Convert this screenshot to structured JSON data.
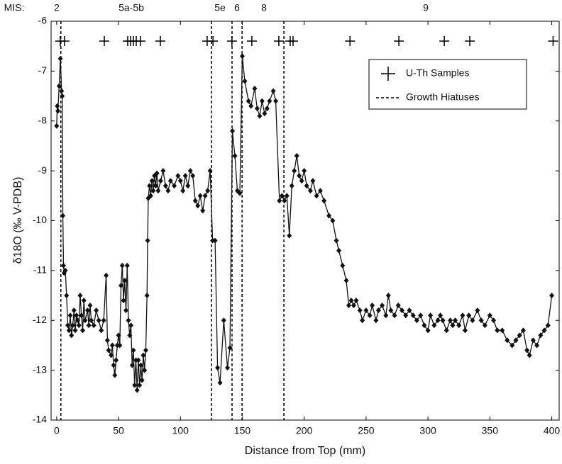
{
  "chart_data": {
    "type": "line",
    "x_label": "Distance from Top (mm)",
    "y_label": "δ18O (‰ V-PDB)",
    "color": "#111111",
    "x": [
      0,
      0.5,
      1,
      2,
      3,
      4,
      4.5,
      5,
      5.5,
      6,
      7,
      8,
      9,
      10,
      11,
      12,
      13,
      14,
      15,
      16,
      17,
      18,
      19,
      20,
      21,
      22,
      23,
      25,
      26,
      27,
      28,
      30,
      32,
      34,
      36,
      38,
      40,
      41,
      42,
      44,
      45,
      46,
      47,
      48,
      49,
      50,
      51,
      52,
      53,
      54,
      55,
      56,
      57,
      58,
      59,
      60,
      61,
      62,
      63,
      64,
      65,
      66,
      67,
      68,
      69,
      70,
      71,
      72,
      73,
      73.5,
      74,
      75,
      76,
      77,
      78,
      79,
      80,
      81,
      82,
      84,
      86,
      88,
      90,
      92,
      95,
      98,
      100,
      102,
      104,
      106,
      108,
      110,
      112,
      114,
      116,
      118,
      120,
      122,
      124,
      126,
      128,
      130,
      132,
      135,
      138,
      140,
      142,
      144,
      146,
      148,
      150,
      152,
      155,
      157,
      160,
      162,
      164,
      166,
      168,
      170,
      172,
      175,
      177,
      180,
      182,
      184,
      186,
      188,
      190,
      192,
      194,
      196,
      198,
      200,
      202,
      205,
      207,
      210,
      213,
      216,
      220,
      223,
      226,
      228,
      231,
      234,
      236,
      238,
      240,
      242,
      245,
      247,
      250,
      253,
      255,
      258,
      260,
      263,
      266,
      268,
      270,
      273,
      276,
      279,
      282,
      285,
      288,
      291,
      294,
      297,
      300,
      302,
      305,
      308,
      310,
      312,
      315,
      318,
      320,
      322,
      325,
      328,
      330,
      333,
      336,
      340,
      343,
      346,
      350,
      353,
      356,
      360,
      364,
      368,
      371,
      374,
      377,
      380,
      382,
      385,
      388,
      391,
      394,
      397,
      400
    ],
    "values": [
      -8.1,
      -7.7,
      -7.8,
      -7.3,
      -6.75,
      -7.4,
      -7.5,
      -9.9,
      -10.9,
      -11.05,
      -11.0,
      -11.5,
      -12.1,
      -12.2,
      -11.9,
      -12.3,
      -12.1,
      -11.8,
      -12.2,
      -11.9,
      -12.0,
      -12.1,
      -11.5,
      -11.9,
      -12.2,
      -11.6,
      -12.0,
      -11.8,
      -12.1,
      -11.7,
      -12.0,
      -12.1,
      -11.8,
      -12.0,
      -12.2,
      -12.0,
      -11.1,
      -12.4,
      -12.6,
      -12.7,
      -12.5,
      -12.9,
      -13.1,
      -12.8,
      -12.5,
      -12.3,
      -12.5,
      -11.3,
      -10.9,
      -11.6,
      -11.2,
      -11.8,
      -10.9,
      -12.0,
      -12.3,
      -12.1,
      -12.9,
      -12.6,
      -13.3,
      -12.8,
      -13.4,
      -12.8,
      -13.3,
      -12.9,
      -13.2,
      -12.7,
      -13.0,
      -12.6,
      -11.5,
      -10.4,
      -9.55,
      -9.3,
      -9.5,
      -9.2,
      -9.4,
      -9.1,
      -9.3,
      -9.05,
      -9.4,
      -9.2,
      -9.0,
      -9.3,
      -9.4,
      -9.2,
      -9.3,
      -9.1,
      -9.2,
      -9.4,
      -9.1,
      -9.3,
      -9.0,
      -9.1,
      -9.6,
      -9.7,
      -9.5,
      -9.8,
      -9.5,
      -9.4,
      -9.0,
      -10.4,
      -10.4,
      -12.95,
      -13.25,
      -12.0,
      -12.95,
      -12.55,
      -8.2,
      -8.7,
      -9.4,
      -9.45,
      -6.7,
      -7.2,
      -7.6,
      -7.7,
      -7.35,
      -7.75,
      -7.9,
      -7.6,
      -7.85,
      -7.75,
      -7.6,
      -7.4,
      -7.6,
      -9.6,
      -9.5,
      -9.6,
      -9.5,
      -10.3,
      -9.3,
      -9.0,
      -8.7,
      -9.1,
      -9.2,
      -9.0,
      -9.3,
      -9.4,
      -9.2,
      -9.5,
      -9.4,
      -9.6,
      -9.9,
      -10.0,
      -10.4,
      -10.6,
      -10.9,
      -11.2,
      -11.7,
      -11.6,
      -11.7,
      -11.6,
      -11.8,
      -12.0,
      -11.8,
      -11.9,
      -11.7,
      -12.0,
      -11.8,
      -11.7,
      -11.9,
      -11.5,
      -11.8,
      -11.9,
      -11.7,
      -11.8,
      -11.9,
      -11.8,
      -11.9,
      -12.0,
      -11.9,
      -12.1,
      -12.2,
      -11.9,
      -12.1,
      -12.0,
      -11.9,
      -12.0,
      -12.2,
      -12.0,
      -12.1,
      -12.0,
      -12.1,
      -11.9,
      -12.2,
      -11.9,
      -12.0,
      -11.8,
      -12.0,
      -12.1,
      -11.9,
      -12.0,
      -12.2,
      -12.2,
      -12.4,
      -12.5,
      -12.4,
      -12.3,
      -12.2,
      -12.6,
      -12.7,
      -12.4,
      -12.5,
      -12.3,
      -12.2,
      -12.1,
      -11.5
    ],
    "samples": {
      "name": "U-Th Samples",
      "x": [
        2.9,
        6.3,
        38.5,
        57.4,
        59.7,
        62,
        64.3,
        67.7,
        83.8,
        121.6,
        126.3,
        141.6,
        157.7,
        179.5,
        188.7,
        191,
        237,
        276.5,
        313.2,
        333.8,
        401.1
      ]
    },
    "hiatuses": {
      "name": "Growth Hiatuses",
      "x": [
        3.4,
        125.1,
        141.7,
        149.8,
        183.6
      ]
    },
    "mis": {
      "title": "MIS:",
      "labels": [
        "2",
        "5a-5b",
        "5e",
        "6",
        "8",
        "9"
      ]
    },
    "xlim": [
      -4.5,
      406
    ],
    "ylim": [
      -14,
      -6
    ],
    "xticks": [
      0,
      50,
      100,
      150,
      200,
      250,
      300,
      350,
      400
    ],
    "yticks": [
      -6,
      -7,
      -8,
      -9,
      -10,
      -11,
      -12,
      -13,
      -14
    ]
  }
}
